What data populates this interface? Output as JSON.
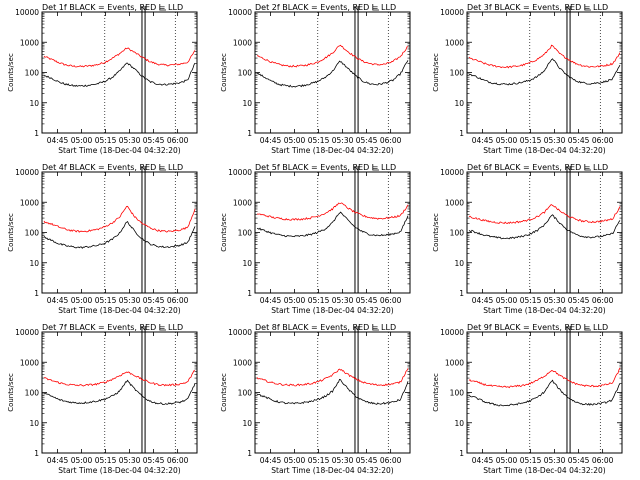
{
  "figure": {
    "background": "#ffffff",
    "colors": {
      "events": "#000000",
      "lld": "#ff0000",
      "axes": "#000000"
    }
  },
  "chart_data": [
    {
      "type": "line",
      "title": "Det 1f BLACK = Events, RED = LLD",
      "xlabel": "Start Time (18-Dec-04 04:32:20)",
      "ylabel": "Counts/sec",
      "y_scale": "log",
      "ylim": [
        1,
        10000
      ],
      "yticks": [
        "1",
        "10",
        "100",
        "1000",
        "10000"
      ],
      "xticks": [
        "04:45",
        "05:00",
        "05:15",
        "05:30",
        "05:45",
        "06:00"
      ],
      "series": [
        {
          "color": "#000000",
          "values": [
            80,
            65,
            48,
            40,
            36,
            36,
            38,
            42,
            50,
            68,
            110,
            210,
            130,
            75,
            50,
            42,
            40,
            42,
            46,
            55,
            200
          ]
        },
        {
          "color": "#ff0000",
          "values": [
            340,
            270,
            210,
            175,
            160,
            158,
            165,
            180,
            215,
            290,
            420,
            650,
            460,
            320,
            230,
            190,
            175,
            178,
            190,
            215,
            520
          ]
        }
      ]
    },
    {
      "type": "line",
      "title": "Det 2f BLACK = Events, RED = LLD",
      "xlabel": "Start Time (18-Dec-04 04:32:20)",
      "ylabel": "Counts/sec",
      "y_scale": "log",
      "ylim": [
        1,
        10000
      ],
      "yticks": [
        "1",
        "10",
        "100",
        "1000",
        "10000"
      ],
      "xticks": [
        "04:45",
        "05:00",
        "05:15",
        "05:30",
        "05:45",
        "06:00"
      ],
      "series": [
        {
          "color": "#000000",
          "values": [
            95,
            70,
            50,
            40,
            36,
            35,
            37,
            42,
            50,
            68,
            110,
            240,
            140,
            80,
            52,
            42,
            40,
            45,
            55,
            90,
            260
          ]
        },
        {
          "color": "#ff0000",
          "values": [
            360,
            280,
            215,
            180,
            165,
            160,
            168,
            185,
            220,
            300,
            440,
            820,
            500,
            330,
            235,
            195,
            180,
            190,
            230,
            340,
            750
          ]
        }
      ]
    },
    {
      "type": "line",
      "title": "Det 3f BLACK = Events, RED = LLD",
      "xlabel": "Start Time (18-Dec-04 04:32:20)",
      "ylabel": "Counts/sec",
      "y_scale": "log",
      "ylim": [
        1,
        10000
      ],
      "yticks": [
        "1",
        "10",
        "100",
        "1000",
        "10000"
      ],
      "xticks": [
        "04:45",
        "05:00",
        "05:15",
        "05:30",
        "05:45",
        "06:00"
      ],
      "series": [
        {
          "color": "#000000",
          "values": [
            90,
            72,
            55,
            46,
            42,
            41,
            43,
            47,
            55,
            72,
            115,
            300,
            140,
            80,
            55,
            46,
            43,
            45,
            50,
            60,
            170
          ]
        },
        {
          "color": "#ff0000",
          "values": [
            300,
            250,
            200,
            170,
            155,
            150,
            158,
            172,
            205,
            270,
            400,
            780,
            420,
            290,
            205,
            170,
            155,
            158,
            170,
            195,
            430
          ]
        }
      ]
    },
    {
      "type": "line",
      "title": "Det 4f BLACK = Events, RED = LLD",
      "xlabel": "Start Time (18-Dec-04 04:32:20)",
      "ylabel": "Counts/sec",
      "y_scale": "log",
      "ylim": [
        1,
        10000
      ],
      "yticks": [
        "1",
        "10",
        "100",
        "1000",
        "10000"
      ],
      "xticks": [
        "04:45",
        "05:00",
        "05:15",
        "05:30",
        "05:45",
        "06:00"
      ],
      "series": [
        {
          "color": "#000000",
          "values": [
            70,
            55,
            42,
            36,
            33,
            32,
            34,
            37,
            44,
            58,
            95,
            230,
            110,
            62,
            42,
            35,
            33,
            34,
            38,
            46,
            150
          ]
        },
        {
          "color": "#ff0000",
          "values": [
            230,
            190,
            150,
            125,
            112,
            108,
            114,
            126,
            152,
            205,
            320,
            750,
            330,
            200,
            145,
            118,
            108,
            110,
            122,
            145,
            600
          ]
        }
      ]
    },
    {
      "type": "line",
      "title": "Det 5f BLACK = Events, RED = LLD",
      "xlabel": "Start Time (18-Dec-04 04:32:20)",
      "ylabel": "Counts/sec",
      "y_scale": "log",
      "ylim": [
        1,
        10000
      ],
      "yticks": [
        "1",
        "10",
        "100",
        "1000",
        "10000"
      ],
      "xticks": [
        "04:45",
        "05:00",
        "05:15",
        "05:30",
        "05:45",
        "06:00"
      ],
      "series": [
        {
          "color": "#000000",
          "values": [
            140,
            115,
            95,
            82,
            76,
            74,
            77,
            85,
            100,
            130,
            210,
            480,
            260,
            150,
            105,
            86,
            80,
            82,
            90,
            105,
            350
          ]
        },
        {
          "color": "#ff0000",
          "values": [
            420,
            370,
            320,
            290,
            275,
            270,
            280,
            300,
            345,
            430,
            600,
            1000,
            650,
            460,
            360,
            310,
            290,
            295,
            320,
            360,
            800
          ]
        }
      ]
    },
    {
      "type": "line",
      "title": "Det 6f BLACK = Events, RED = LLD",
      "xlabel": "Start Time (18-Dec-04 04:32:20)",
      "ylabel": "Counts/sec",
      "y_scale": "log",
      "ylim": [
        1,
        10000
      ],
      "yticks": [
        "1",
        "10",
        "100",
        "1000",
        "10000"
      ],
      "xticks": [
        "04:45",
        "05:00",
        "05:15",
        "05:30",
        "05:45",
        "06:00"
      ],
      "series": [
        {
          "color": "#000000",
          "values": [
            120,
            100,
            82,
            72,
            66,
            64,
            67,
            74,
            88,
            115,
            180,
            380,
            210,
            125,
            90,
            75,
            70,
            72,
            78,
            92,
            260
          ]
        },
        {
          "color": "#ff0000",
          "values": [
            340,
            290,
            250,
            225,
            212,
            208,
            215,
            232,
            265,
            330,
            470,
            850,
            520,
            360,
            280,
            240,
            225,
            228,
            245,
            280,
            700
          ]
        }
      ]
    },
    {
      "type": "line",
      "title": "Det 7f BLACK = Events, RED = LLD",
      "xlabel": "Start Time (18-Dec-04 04:32:20)",
      "ylabel": "Counts/sec",
      "y_scale": "log",
      "ylim": [
        1,
        10000
      ],
      "yticks": [
        "1",
        "10",
        "100",
        "1000",
        "10000"
      ],
      "xticks": [
        "04:45",
        "05:00",
        "05:15",
        "05:30",
        "05:45",
        "06:00"
      ],
      "series": [
        {
          "color": "#000000",
          "values": [
            95,
            75,
            58,
            50,
            46,
            45,
            48,
            52,
            60,
            75,
            110,
            250,
            130,
            75,
            52,
            44,
            42,
            44,
            48,
            58,
            200
          ]
        },
        {
          "color": "#ff0000",
          "values": [
            300,
            250,
            210,
            185,
            175,
            172,
            178,
            190,
            215,
            270,
            360,
            480,
            370,
            270,
            215,
            185,
            175,
            178,
            190,
            220,
            560
          ]
        }
      ]
    },
    {
      "type": "line",
      "title": "Det 8f BLACK = Events, RED = LLD",
      "xlabel": "Start Time (18-Dec-04 04:32:20)",
      "ylabel": "Counts/sec",
      "y_scale": "log",
      "ylim": [
        1,
        10000
      ],
      "yticks": [
        "1",
        "10",
        "100",
        "1000",
        "10000"
      ],
      "xticks": [
        "04:45",
        "05:00",
        "05:15",
        "05:30",
        "05:45",
        "06:00"
      ],
      "series": [
        {
          "color": "#000000",
          "values": [
            90,
            72,
            56,
            48,
            44,
            43,
            46,
            50,
            58,
            74,
            110,
            270,
            135,
            78,
            54,
            45,
            42,
            44,
            48,
            58,
            220
          ]
        },
        {
          "color": "#ff0000",
          "values": [
            300,
            250,
            210,
            188,
            178,
            175,
            182,
            195,
            222,
            280,
            380,
            600,
            400,
            285,
            220,
            190,
            178,
            180,
            192,
            220,
            650
          ]
        }
      ]
    },
    {
      "type": "line",
      "title": "Det 9f BLACK = Events, RED = LLD",
      "xlabel": "Start Time (18-Dec-04 04:32:20)",
      "ylabel": "Counts/sec",
      "y_scale": "log",
      "ylim": [
        1,
        10000
      ],
      "yticks": [
        "1",
        "10",
        "100",
        "1000",
        "10000"
      ],
      "xticks": [
        "04:45",
        "05:00",
        "05:15",
        "05:30",
        "05:45",
        "06:00"
      ],
      "series": [
        {
          "color": "#000000",
          "values": [
            80,
            65,
            50,
            42,
            38,
            37,
            40,
            44,
            52,
            68,
            105,
            250,
            125,
            72,
            50,
            42,
            40,
            42,
            46,
            56,
            210
          ]
        },
        {
          "color": "#ff0000",
          "values": [
            260,
            220,
            185,
            165,
            155,
            152,
            158,
            170,
            195,
            250,
            350,
            560,
            370,
            260,
            200,
            172,
            162,
            165,
            178,
            205,
            620
          ]
        }
      ]
    }
  ]
}
